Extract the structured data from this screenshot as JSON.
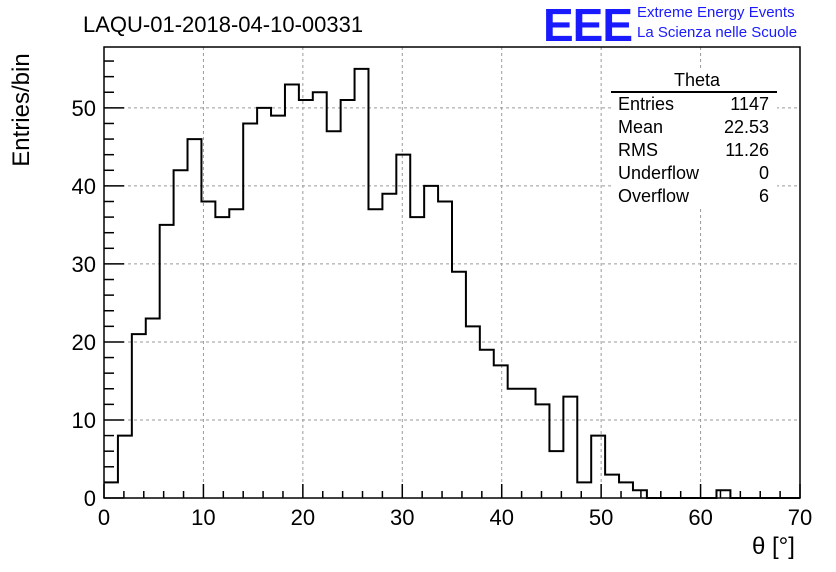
{
  "title": "LAQU-01-2018-04-10-00331",
  "logo": {
    "mark": "EEE",
    "line1": "Extreme Energy Events",
    "line2": "La Scienza nelle Scuole",
    "color": "#1a1aff"
  },
  "stats_box": {
    "title": "Theta",
    "rows": [
      {
        "label": "Entries",
        "value": "1147"
      },
      {
        "label": "Mean",
        "value": "22.53"
      },
      {
        "label": "RMS",
        "value": "11.26"
      },
      {
        "label": "Underflow",
        "value": "0"
      },
      {
        "label": "Overflow",
        "value": "6"
      }
    ]
  },
  "chart_data": {
    "type": "bar",
    "histogram": true,
    "title": "LAQU-01-2018-04-10-00331",
    "xlabel": "θ [°]",
    "ylabel": "Entries/bin",
    "xlim": [
      0,
      70
    ],
    "ylim": [
      0,
      57.8
    ],
    "bin_width": 1.4,
    "grid": true,
    "x_ticks": [
      0,
      10,
      20,
      30,
      40,
      50,
      60,
      70
    ],
    "y_ticks": [
      0,
      10,
      20,
      30,
      40,
      50
    ],
    "values": [
      2,
      8,
      21,
      23,
      35,
      42,
      46,
      38,
      36,
      37,
      48,
      50,
      49,
      53,
      51,
      52,
      47,
      51,
      55,
      37,
      39,
      44,
      36,
      40,
      38,
      29,
      22,
      19,
      17,
      14,
      14,
      12,
      6,
      13,
      2,
      8,
      3,
      2,
      1,
      0,
      0,
      0,
      0,
      0,
      1,
      0,
      0,
      0,
      0,
      0
    ]
  }
}
